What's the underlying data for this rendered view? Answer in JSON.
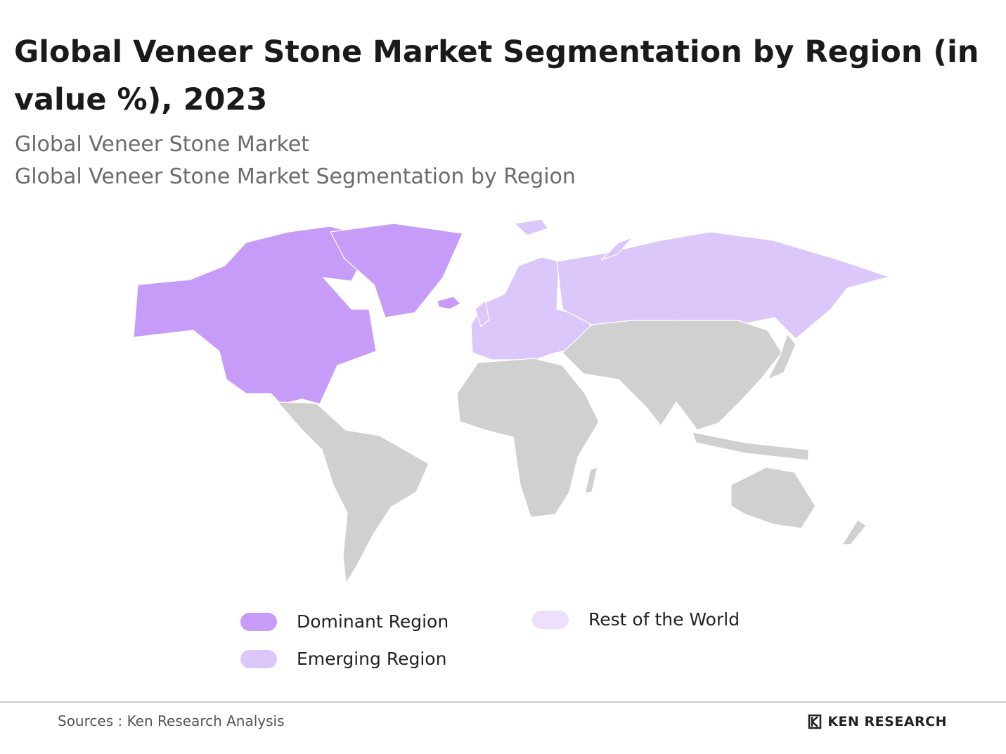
{
  "header": {
    "title": "Global Veneer Stone Market Segmentation by Region (in value %), 2023",
    "subtitle_lines": [
      "Global Veneer Stone Market",
      "Global Veneer Stone Market Segmentation by Region"
    ]
  },
  "legend": [
    {
      "label": "Dominant Region",
      "color": "#c79cf9"
    },
    {
      "label": "Emerging Region",
      "color": "#dcc7fb"
    },
    {
      "label": "Rest of the World",
      "color": "#ece0fd"
    }
  ],
  "map_other_color": "#d0d0d0",
  "footer": {
    "source": "Sources : Ken Research Analysis",
    "logo": "KEN RESEARCH"
  }
}
